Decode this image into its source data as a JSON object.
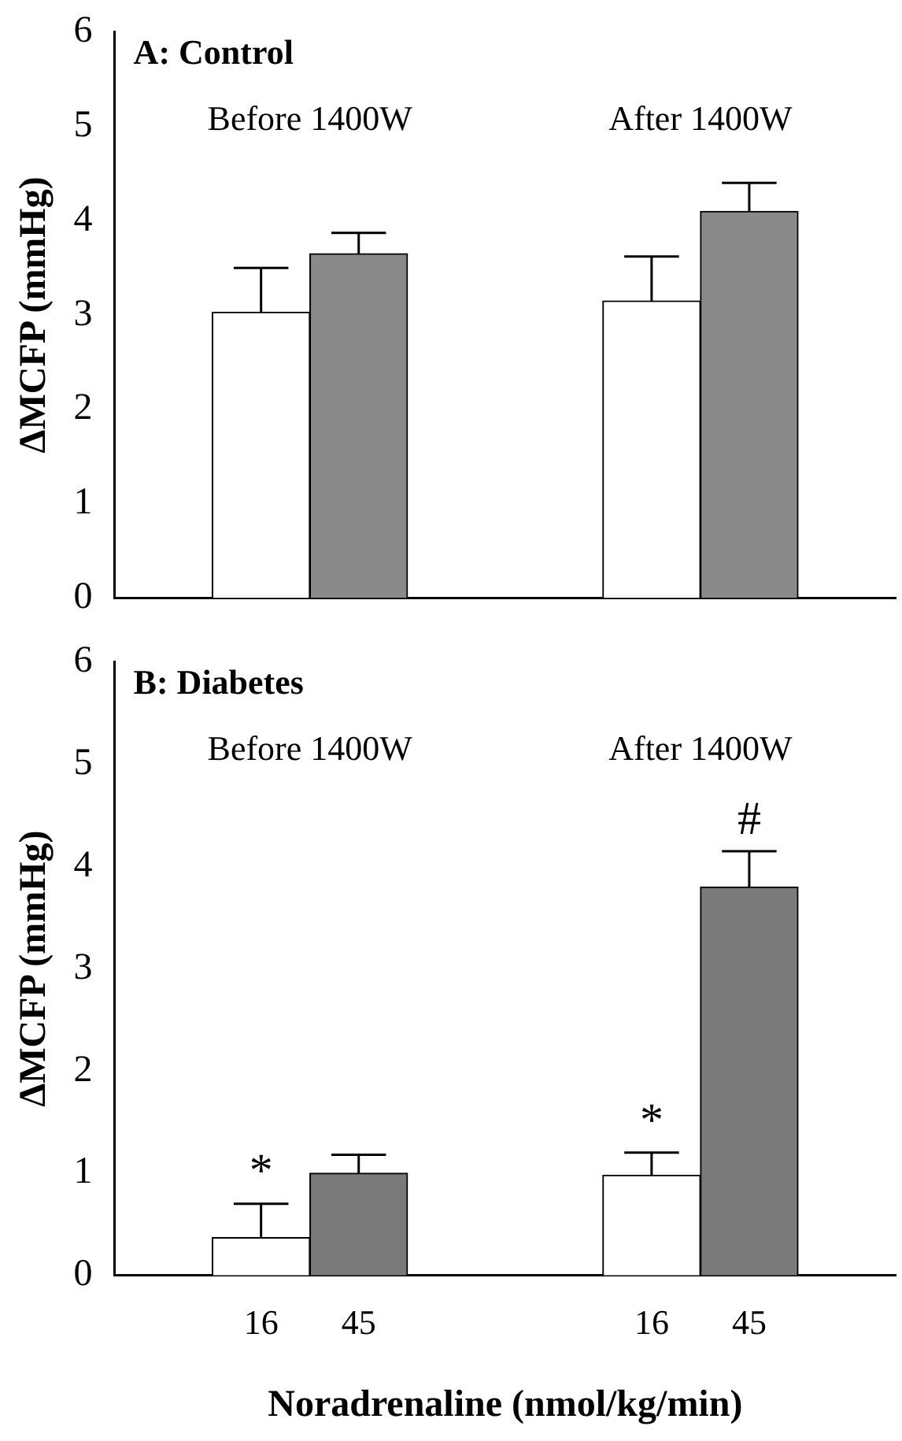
{
  "chart_data": [
    {
      "type": "bar",
      "title": "A: Control",
      "ylabel": "ΔMCFP (mmHg)",
      "categories": [
        null,
        "16",
        "45",
        null,
        null,
        "16",
        "45",
        null
      ],
      "values": [
        null,
        3.03,
        3.65,
        null,
        null,
        3.15,
        4.1,
        null
      ],
      "colors": [
        "#ffffff",
        "#ffffff",
        "#8a8a8a",
        "#ffffff",
        "#ffffff",
        "#ffffff",
        "#8a8a8a",
        "#ffffff"
      ],
      "errors": [
        null,
        [
          3.03,
          3.5
        ],
        [
          3.65,
          3.87
        ],
        null,
        null,
        [
          3.15,
          3.62
        ],
        [
          4.1,
          4.4
        ],
        null
      ],
      "annotations": [
        "Before 1400W",
        "After 1400W"
      ],
      "ylim": [
        0,
        6
      ],
      "yticks": [
        0,
        1,
        2,
        3,
        4,
        5,
        6
      ],
      "tick_labels": "y"
    },
    {
      "type": "bar",
      "title": "B: Diabetes",
      "ylabel": "ΔMCFP (mmHg)",
      "xlabel": "Noradrenaline (nmol/kg/min)",
      "categories": [
        null,
        "16",
        "45",
        null,
        null,
        "16",
        "45",
        null
      ],
      "values": [
        null,
        0.37,
        1.0,
        null,
        null,
        0.98,
        3.8,
        null
      ],
      "colors": [
        "#ffffff",
        "#ffffff",
        "#7a7a7a",
        "#ffffff",
        "#ffffff",
        "#ffffff",
        "#7a7a7a",
        "#ffffff"
      ],
      "errors": [
        null,
        [
          0.37,
          0.7
        ],
        [
          1.0,
          1.18
        ],
        null,
        null,
        [
          0.98,
          1.2
        ],
        [
          3.8,
          4.15
        ],
        null
      ],
      "value_labels": [
        null,
        "*",
        null,
        null,
        null,
        "*",
        "#",
        null
      ],
      "annotations": [
        "Before 1400W",
        "After 1400W"
      ],
      "ylim": [
        0,
        6
      ],
      "yticks": [
        0,
        1,
        2,
        3,
        4,
        5,
        6
      ]
    }
  ]
}
